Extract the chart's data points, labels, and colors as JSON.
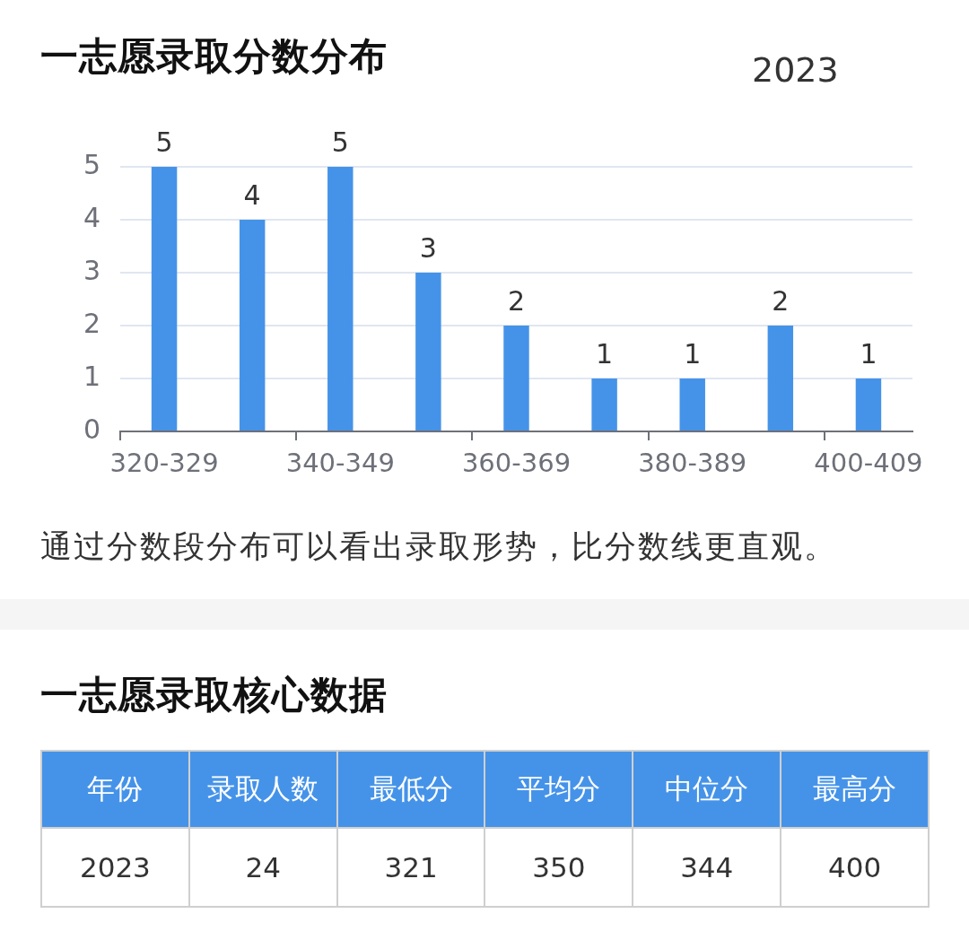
{
  "chart_data": [
    {
      "type": "bar",
      "title": "一志愿录取分数分布",
      "subtitle": "2023",
      "categories": [
        "320-329",
        null,
        "340-349",
        null,
        "360-369",
        null,
        "380-389",
        null,
        "400-409"
      ],
      "values": [
        5,
        4,
        5,
        3,
        2,
        1,
        1,
        2,
        1
      ],
      "color": "#4593e9",
      "ylim": [
        0,
        5
      ],
      "yticks": [
        0,
        1,
        2,
        3,
        4,
        5
      ],
      "grid": "y",
      "data_labels": true,
      "annotations": [
        "通过分数段分布可以看出录取形势，比分数线更直观。"
      ]
    },
    {
      "type": "other",
      "title": "一志愿录取核心数据",
      "categories": [
        "年份",
        "录取人数",
        "最低分",
        "平均分",
        "中位分",
        "最高分"
      ],
      "values": [
        2023,
        24,
        321,
        350,
        344,
        400
      ],
      "data_labels": true
    }
  ]
}
